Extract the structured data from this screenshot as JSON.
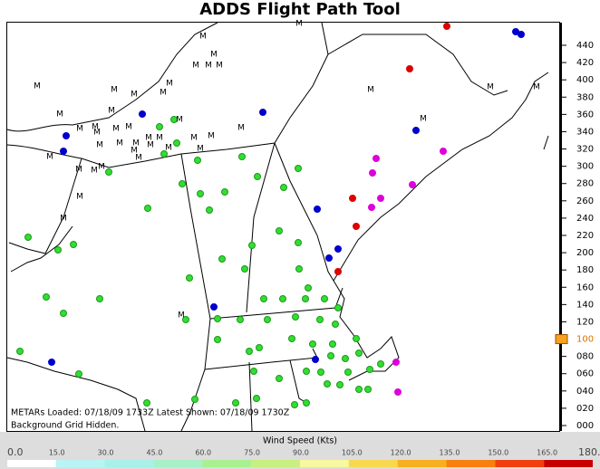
{
  "title": "ADDS Flight Path Tool",
  "status": {
    "metars": "METARs Loaded: 07/18/09 1733Z Latest Shown: 07/18/09 1730Z",
    "grid": "Background Grid Hidden."
  },
  "station_missing_label": "M",
  "altitude_scale": {
    "labels": [
      {
        "label": "440",
        "selected": false
      },
      {
        "label": "420",
        "selected": false
      },
      {
        "label": "400",
        "selected": false
      },
      {
        "label": "380",
        "selected": false
      },
      {
        "label": "360",
        "selected": false
      },
      {
        "label": "340",
        "selected": false
      },
      {
        "label": "320",
        "selected": false
      },
      {
        "label": "300",
        "selected": false
      },
      {
        "label": "280",
        "selected": false
      },
      {
        "label": "260",
        "selected": false
      },
      {
        "label": "240",
        "selected": false
      },
      {
        "label": "220",
        "selected": false
      },
      {
        "label": "200",
        "selected": false
      },
      {
        "label": "180",
        "selected": false
      },
      {
        "label": "160",
        "selected": false
      },
      {
        "label": "140",
        "selected": false
      },
      {
        "label": "120",
        "selected": false
      },
      {
        "label": "100",
        "selected": true
      },
      {
        "label": "080",
        "selected": false
      },
      {
        "label": "060",
        "selected": false
      },
      {
        "label": "040",
        "selected": false
      },
      {
        "label": "020",
        "selected": false
      },
      {
        "label": "000",
        "selected": false
      }
    ]
  },
  "wind_legend": {
    "title": "Wind Speed (Kts)",
    "labels": [
      "0.0",
      "15.0",
      "30.0",
      "45.0",
      "60.0",
      "75.0",
      "90.0",
      "105.0",
      "120.0",
      "135.0",
      "150.0",
      "165.0",
      "180.0"
    ],
    "colors": [
      "#ffffff",
      "#b8f4f4",
      "#a8f0e8",
      "#a8f0c8",
      "#a8f090",
      "#c8f080",
      "#f8f8a0",
      "#f8d850",
      "#f8b020",
      "#f88010",
      "#f04010",
      "#c80000"
    ]
  }
}
